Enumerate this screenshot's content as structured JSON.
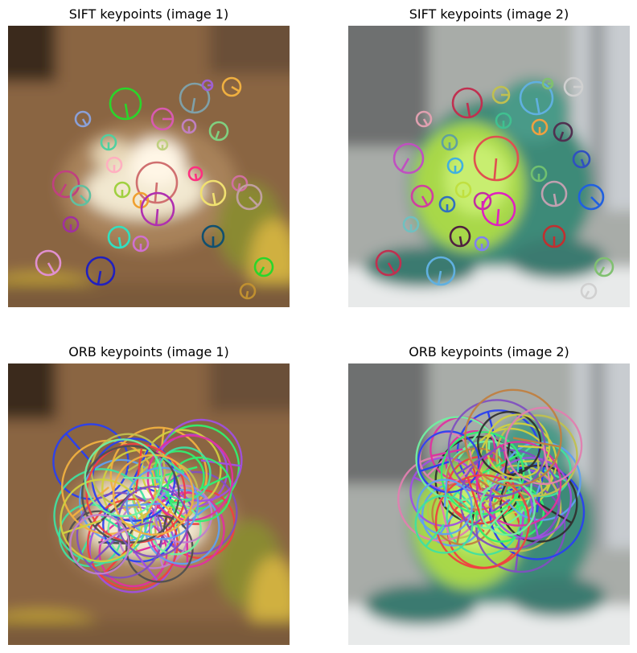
{
  "panels": [
    {
      "title": "SIFT keypoints (image 1)",
      "scene": "cat",
      "method": "SIFT",
      "keypoint_colors": [
        "#2ad62a",
        "#8aa0d8",
        "#d85ab0",
        "#7fa0a8",
        "#f0b040",
        "#a060d0",
        "#c080c0",
        "#80d080",
        "#c0d080",
        "#50d0a0",
        "#ffb0c0",
        "#d07070",
        "#c04080",
        "#ff3080",
        "#d070a0",
        "#60c0a0",
        "#a0d040",
        "#f0e070",
        "#c0a0a0",
        "#a030a0",
        "#f0a030",
        "#b030b0",
        "#105070",
        "#d070d0",
        "#30e0c0",
        "#e090d0",
        "#2020c0",
        "#c09030"
      ]
    },
    {
      "title": "SIFT keypoints (image 2)",
      "scene": "frog",
      "method": "SIFT",
      "keypoint_colors": [
        "#c03050",
        "#60b0e0",
        "#d0d0d0",
        "#80c070",
        "#c0c050",
        "#e0a0b0",
        "#40c090",
        "#f0a040",
        "#503050",
        "#60a0a0",
        "#e05050",
        "#c050c0",
        "#3050c0",
        "#40b0e0",
        "#70c070",
        "#d040a0",
        "#c0e040",
        "#c0a0b0",
        "#2060e0",
        "#3070c0",
        "#c030a0",
        "#e020c0",
        "#70c0c0",
        "#502040",
        "#8080f0",
        "#c03030"
      ]
    },
    {
      "title": "ORB keypoints (image 1)",
      "scene": "cat",
      "method": "ORB",
      "keypoint_colors": [
        "#2a40f0",
        "#a050e0",
        "#c0c050",
        "#30f070",
        "#e030a0",
        "#f04040",
        "#60a0f0",
        "#505050",
        "#d0d040",
        "#40e0a0",
        "#8050c0",
        "#f0b040",
        "#70f0a0",
        "#c080d0"
      ]
    },
    {
      "title": "ORB keypoints (image 2)",
      "scene": "frog",
      "method": "ORB",
      "keypoint_colors": [
        "#2a40f0",
        "#a050e0",
        "#c0c050",
        "#30f070",
        "#e030a0",
        "#f04040",
        "#60a0f0",
        "#303030",
        "#d0d040",
        "#40e0a0",
        "#8050c0",
        "#e080b0",
        "#70f0a0",
        "#c08040"
      ]
    }
  ]
}
